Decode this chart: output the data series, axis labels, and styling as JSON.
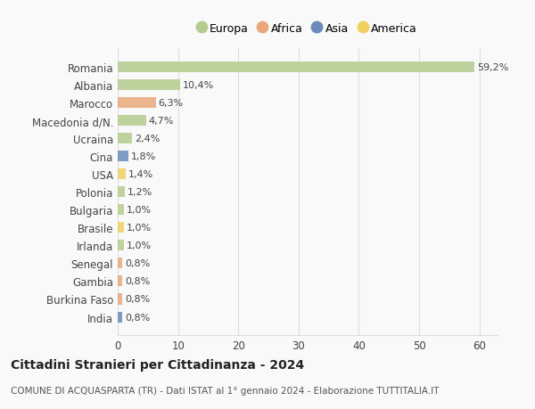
{
  "countries": [
    "Romania",
    "Albania",
    "Marocco",
    "Macedonia d/N.",
    "Ucraina",
    "Cina",
    "USA",
    "Polonia",
    "Bulgaria",
    "Brasile",
    "Irlanda",
    "Senegal",
    "Gambia",
    "Burkina Faso",
    "India"
  ],
  "values": [
    59.2,
    10.4,
    6.3,
    4.7,
    2.4,
    1.8,
    1.4,
    1.2,
    1.0,
    1.0,
    1.0,
    0.8,
    0.8,
    0.8,
    0.8
  ],
  "labels": [
    "59,2%",
    "10,4%",
    "6,3%",
    "4,7%",
    "2,4%",
    "1,8%",
    "1,4%",
    "1,2%",
    "1,0%",
    "1,0%",
    "1,0%",
    "0,8%",
    "0,8%",
    "0,8%",
    "0,8%"
  ],
  "continents": [
    "Europa",
    "Europa",
    "Africa",
    "Europa",
    "Europa",
    "Asia",
    "America",
    "Europa",
    "Europa",
    "America",
    "Europa",
    "Africa",
    "Africa",
    "Africa",
    "Asia"
  ],
  "colors": {
    "Europa": "#b5cc8e",
    "Africa": "#e8a87c",
    "Asia": "#6b8cba",
    "America": "#f0d060"
  },
  "legend_order": [
    "Europa",
    "Africa",
    "Asia",
    "America"
  ],
  "xlim": [
    0,
    63
  ],
  "xticks": [
    0,
    10,
    20,
    30,
    40,
    50,
    60
  ],
  "title": "Cittadini Stranieri per Cittadinanza - 2024",
  "subtitle": "COMUNE DI ACQUASPARTA (TR) - Dati ISTAT al 1° gennaio 2024 - Elaborazione TUTTITALIA.IT",
  "bg_color": "#f9f9f9",
  "grid_color": "#dddddd"
}
